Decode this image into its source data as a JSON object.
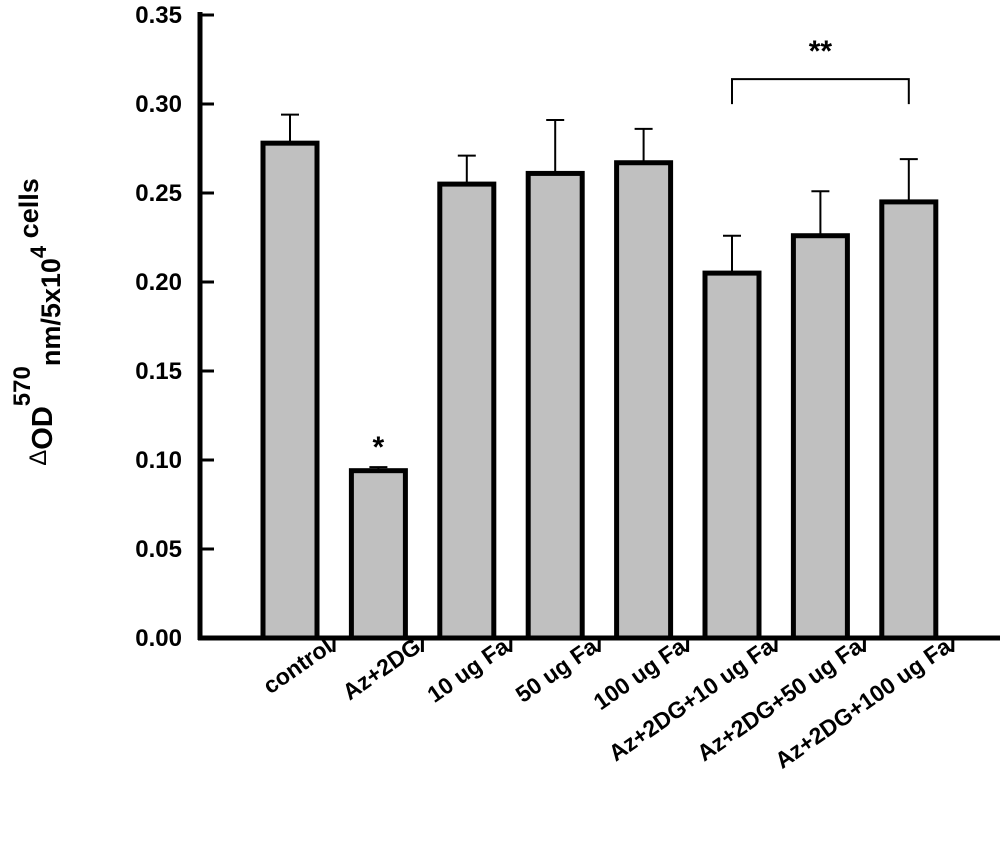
{
  "chart_data": {
    "type": "bar",
    "categories": [
      "control",
      "Az+2DG",
      "10 ug Fa",
      "50 ug Fa",
      "100 ug Fa",
      "Az+2DG+10 ug Fa",
      "Az+2DG+50 ug Fa",
      "Az+2DG+100 ug Fa"
    ],
    "values": [
      0.278,
      0.094,
      0.255,
      0.261,
      0.267,
      0.205,
      0.226,
      0.245
    ],
    "errors": [
      0.016,
      0.002,
      0.016,
      0.03,
      0.019,
      0.021,
      0.025,
      0.024
    ],
    "ylim": [
      0,
      0.35
    ],
    "yticks": [
      "0.00",
      "0.05",
      "0.10",
      "0.15",
      "0.20",
      "0.25",
      "0.30",
      "0.35"
    ],
    "ylabel": {
      "delta": "Δ",
      "main": "OD",
      "superscript": "570",
      "subscript": "nm/5x10",
      "exponent": "4",
      "tail": " cells"
    },
    "annotations": [
      {
        "text": "*",
        "category_index": 1
      },
      {
        "text": "**",
        "bracket_from": 5,
        "bracket_to": 7
      }
    ],
    "bar_color": "#c0c0c0",
    "edge_color": "#000000",
    "grid": false,
    "legend": "none"
  }
}
